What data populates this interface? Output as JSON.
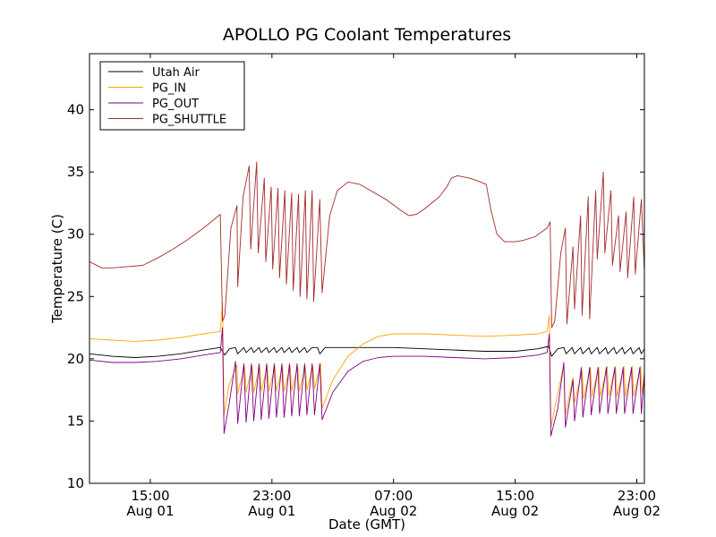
{
  "chart_data": {
    "type": "line",
    "title": "APOLLO PG Coolant Temperatures",
    "xlabel": "Date (GMT)",
    "ylabel": "Temperature (C)",
    "x_unit": "hours since Aug 01 00:00 GMT",
    "xlim": [
      11.0,
      47.5
    ],
    "ylim": [
      10,
      44.5
    ],
    "y_ticks": [
      10,
      15,
      20,
      25,
      30,
      35,
      40
    ],
    "x_ticks": [
      {
        "x": 15,
        "time": "15:00",
        "date": "Aug 01"
      },
      {
        "x": 23,
        "time": "23:00",
        "date": "Aug 01"
      },
      {
        "x": 31,
        "time": "07:00",
        "date": "Aug 02"
      },
      {
        "x": 39,
        "time": "15:00",
        "date": "Aug 02"
      },
      {
        "x": 47,
        "time": "23:00",
        "date": "Aug 02"
      }
    ],
    "legend_position": "top-left",
    "series": [
      {
        "name": "Utah Air",
        "color": "#000000",
        "points": [
          [
            11.0,
            20.4
          ],
          [
            12.5,
            20.2
          ],
          [
            14.0,
            20.1
          ],
          [
            15.5,
            20.2
          ],
          [
            17.0,
            20.4
          ],
          [
            18.5,
            20.7
          ],
          [
            19.6,
            20.9
          ],
          [
            19.9,
            20.3
          ],
          [
            20.2,
            20.8
          ],
          [
            20.6,
            20.9
          ],
          [
            20.75,
            20.4
          ],
          [
            21.15,
            20.9
          ],
          [
            21.3,
            20.5
          ],
          [
            21.65,
            20.9
          ],
          [
            21.8,
            20.5
          ],
          [
            22.15,
            20.9
          ],
          [
            22.3,
            20.5
          ],
          [
            22.65,
            20.9
          ],
          [
            22.8,
            20.5
          ],
          [
            23.15,
            20.9
          ],
          [
            23.3,
            20.5
          ],
          [
            23.65,
            20.9
          ],
          [
            23.8,
            20.5
          ],
          [
            24.15,
            20.9
          ],
          [
            24.3,
            20.5
          ],
          [
            24.65,
            20.9
          ],
          [
            24.8,
            20.5
          ],
          [
            25.15,
            20.9
          ],
          [
            25.3,
            20.5
          ],
          [
            25.65,
            20.9
          ],
          [
            26.0,
            20.9
          ],
          [
            26.15,
            20.4
          ],
          [
            26.5,
            20.9
          ],
          [
            29.0,
            20.9
          ],
          [
            31.0,
            20.9
          ],
          [
            33.0,
            20.8
          ],
          [
            35.0,
            20.7
          ],
          [
            37.0,
            20.6
          ],
          [
            39.0,
            20.6
          ],
          [
            40.5,
            20.8
          ],
          [
            41.2,
            21.0
          ],
          [
            41.4,
            20.2
          ],
          [
            41.8,
            20.8
          ],
          [
            42.2,
            20.9
          ],
          [
            42.35,
            20.4
          ],
          [
            42.75,
            20.9
          ],
          [
            42.9,
            20.4
          ],
          [
            43.3,
            20.9
          ],
          [
            43.45,
            20.4
          ],
          [
            43.85,
            20.9
          ],
          [
            44.0,
            20.4
          ],
          [
            44.4,
            20.9
          ],
          [
            44.55,
            20.4
          ],
          [
            44.95,
            20.9
          ],
          [
            45.1,
            20.4
          ],
          [
            45.5,
            20.9
          ],
          [
            45.65,
            20.4
          ],
          [
            46.05,
            20.9
          ],
          [
            46.2,
            20.4
          ],
          [
            46.6,
            20.9
          ],
          [
            46.75,
            20.4
          ],
          [
            47.15,
            20.9
          ],
          [
            47.3,
            20.4
          ],
          [
            47.5,
            20.8
          ]
        ]
      },
      {
        "name": "PG_IN",
        "color": "#ffa500",
        "points": [
          [
            11.0,
            21.6
          ],
          [
            12.5,
            21.5
          ],
          [
            14.0,
            21.4
          ],
          [
            15.5,
            21.5
          ],
          [
            17.0,
            21.7
          ],
          [
            18.5,
            22.0
          ],
          [
            19.6,
            22.2
          ],
          [
            19.75,
            24.5
          ],
          [
            19.85,
            15.5
          ],
          [
            20.2,
            18.0
          ],
          [
            20.7,
            19.5
          ],
          [
            20.75,
            17.2
          ],
          [
            21.2,
            19.4
          ],
          [
            21.3,
            17.3
          ],
          [
            21.7,
            19.4
          ],
          [
            21.8,
            17.3
          ],
          [
            22.2,
            19.4
          ],
          [
            22.3,
            17.4
          ],
          [
            22.7,
            19.4
          ],
          [
            22.8,
            17.4
          ],
          [
            23.2,
            19.4
          ],
          [
            23.3,
            17.4
          ],
          [
            23.7,
            19.4
          ],
          [
            23.8,
            17.4
          ],
          [
            24.2,
            19.4
          ],
          [
            24.3,
            17.4
          ],
          [
            24.7,
            19.4
          ],
          [
            24.8,
            17.4
          ],
          [
            25.2,
            19.4
          ],
          [
            25.3,
            17.5
          ],
          [
            25.7,
            19.4
          ],
          [
            25.8,
            17.6
          ],
          [
            26.2,
            19.6
          ],
          [
            26.3,
            16.0
          ],
          [
            27.0,
            18.3
          ],
          [
            28.0,
            20.2
          ],
          [
            29.0,
            21.2
          ],
          [
            30.0,
            21.8
          ],
          [
            31.0,
            22.0
          ],
          [
            33.0,
            22.0
          ],
          [
            35.0,
            21.9
          ],
          [
            37.0,
            21.8
          ],
          [
            39.0,
            21.9
          ],
          [
            40.5,
            22.0
          ],
          [
            41.1,
            22.2
          ],
          [
            41.25,
            23.5
          ],
          [
            41.35,
            14.5
          ],
          [
            41.8,
            17.2
          ],
          [
            42.2,
            19.5
          ],
          [
            42.3,
            15.5
          ],
          [
            42.8,
            18.5
          ],
          [
            42.9,
            16.5
          ],
          [
            43.4,
            19.0
          ],
          [
            43.5,
            16.8
          ],
          [
            43.95,
            19.3
          ],
          [
            44.05,
            17.0
          ],
          [
            44.5,
            19.3
          ],
          [
            44.6,
            17.0
          ],
          [
            45.05,
            19.4
          ],
          [
            45.15,
            17.0
          ],
          [
            45.6,
            19.4
          ],
          [
            45.7,
            17.0
          ],
          [
            46.15,
            19.4
          ],
          [
            46.25,
            17.0
          ],
          [
            46.7,
            19.4
          ],
          [
            46.8,
            17.0
          ],
          [
            47.25,
            19.4
          ],
          [
            47.35,
            17.2
          ],
          [
            47.5,
            19.0
          ]
        ]
      },
      {
        "name": "PG_OUT",
        "color": "#800080",
        "points": [
          [
            11.0,
            19.9
          ],
          [
            12.5,
            19.7
          ],
          [
            14.0,
            19.7
          ],
          [
            15.5,
            19.8
          ],
          [
            17.0,
            20.0
          ],
          [
            18.5,
            20.3
          ],
          [
            19.6,
            20.5
          ],
          [
            19.75,
            22.5
          ],
          [
            19.85,
            14.0
          ],
          [
            20.2,
            16.5
          ],
          [
            20.6,
            19.8
          ],
          [
            20.75,
            14.8
          ],
          [
            21.15,
            19.6
          ],
          [
            21.3,
            14.9
          ],
          [
            21.65,
            19.6
          ],
          [
            21.8,
            15.0
          ],
          [
            22.15,
            19.6
          ],
          [
            22.3,
            15.1
          ],
          [
            22.65,
            19.6
          ],
          [
            22.8,
            15.2
          ],
          [
            23.15,
            19.6
          ],
          [
            23.3,
            15.3
          ],
          [
            23.65,
            19.6
          ],
          [
            23.8,
            15.3
          ],
          [
            24.15,
            19.6
          ],
          [
            24.3,
            15.4
          ],
          [
            24.65,
            19.6
          ],
          [
            24.8,
            15.4
          ],
          [
            25.15,
            19.6
          ],
          [
            25.3,
            15.5
          ],
          [
            25.65,
            19.6
          ],
          [
            25.8,
            15.5
          ],
          [
            26.15,
            19.6
          ],
          [
            26.3,
            15.1
          ],
          [
            27.0,
            17.3
          ],
          [
            28.0,
            19.0
          ],
          [
            29.0,
            19.8
          ],
          [
            30.0,
            20.1
          ],
          [
            31.0,
            20.2
          ],
          [
            33.0,
            20.2
          ],
          [
            35.0,
            20.1
          ],
          [
            37.0,
            20.0
          ],
          [
            39.0,
            20.1
          ],
          [
            40.5,
            20.3
          ],
          [
            41.1,
            20.5
          ],
          [
            41.25,
            22.0
          ],
          [
            41.35,
            13.8
          ],
          [
            41.8,
            16.0
          ],
          [
            42.2,
            19.7
          ],
          [
            42.3,
            14.5
          ],
          [
            42.8,
            18.3
          ],
          [
            42.9,
            15.0
          ],
          [
            43.35,
            19.3
          ],
          [
            43.45,
            15.3
          ],
          [
            43.9,
            19.3
          ],
          [
            44.0,
            15.5
          ],
          [
            44.45,
            19.3
          ],
          [
            44.55,
            15.6
          ],
          [
            45.0,
            19.3
          ],
          [
            45.1,
            15.6
          ],
          [
            45.55,
            19.3
          ],
          [
            45.65,
            15.6
          ],
          [
            46.1,
            19.3
          ],
          [
            46.2,
            15.6
          ],
          [
            46.65,
            19.3
          ],
          [
            46.75,
            15.6
          ],
          [
            47.2,
            19.3
          ],
          [
            47.3,
            15.6
          ],
          [
            47.5,
            18.8
          ]
        ]
      },
      {
        "name": "PG_SHUTTLE",
        "color": "#a52a2a",
        "points": [
          [
            11.0,
            27.8
          ],
          [
            11.8,
            27.3
          ],
          [
            12.5,
            27.3
          ],
          [
            13.5,
            27.4
          ],
          [
            14.5,
            27.5
          ],
          [
            15.5,
            28.1
          ],
          [
            16.5,
            28.8
          ],
          [
            17.5,
            29.6
          ],
          [
            18.5,
            30.5
          ],
          [
            19.6,
            31.6
          ],
          [
            19.75,
            23.0
          ],
          [
            19.9,
            23.5
          ],
          [
            20.3,
            30.5
          ],
          [
            20.7,
            32.3
          ],
          [
            20.75,
            25.8
          ],
          [
            21.1,
            33.0
          ],
          [
            21.5,
            35.5
          ],
          [
            21.6,
            28.8
          ],
          [
            22.0,
            35.8
          ],
          [
            22.1,
            28.5
          ],
          [
            22.5,
            34.5
          ],
          [
            22.6,
            27.8
          ],
          [
            22.95,
            33.8
          ],
          [
            23.05,
            27.2
          ],
          [
            23.4,
            33.7
          ],
          [
            23.5,
            26.5
          ],
          [
            23.85,
            33.5
          ],
          [
            23.95,
            26.0
          ],
          [
            24.3,
            33.3
          ],
          [
            24.4,
            25.5
          ],
          [
            24.75,
            33.2
          ],
          [
            24.85,
            25.0
          ],
          [
            25.2,
            33.5
          ],
          [
            25.3,
            24.8
          ],
          [
            25.65,
            33.5
          ],
          [
            25.75,
            24.6
          ],
          [
            26.15,
            32.8
          ],
          [
            26.3,
            25.3
          ],
          [
            26.8,
            31.5
          ],
          [
            27.3,
            33.5
          ],
          [
            28.0,
            34.2
          ],
          [
            28.8,
            34.0
          ],
          [
            29.5,
            33.5
          ],
          [
            30.5,
            32.8
          ],
          [
            31.5,
            31.9
          ],
          [
            32.0,
            31.5
          ],
          [
            32.5,
            31.6
          ],
          [
            33.0,
            32.0
          ],
          [
            33.5,
            32.5
          ],
          [
            34.0,
            33.0
          ],
          [
            34.5,
            33.8
          ],
          [
            34.8,
            34.5
          ],
          [
            35.2,
            34.7
          ],
          [
            36.0,
            34.5
          ],
          [
            36.5,
            34.3
          ],
          [
            37.1,
            34.0
          ],
          [
            37.4,
            32.0
          ],
          [
            37.8,
            30.0
          ],
          [
            38.3,
            29.4
          ],
          [
            39.0,
            29.4
          ],
          [
            39.5,
            29.5
          ],
          [
            40.3,
            29.8
          ],
          [
            41.1,
            30.5
          ],
          [
            41.3,
            31.0
          ],
          [
            41.4,
            22.5
          ],
          [
            41.6,
            23.0
          ],
          [
            42.0,
            28.5
          ],
          [
            42.3,
            30.5
          ],
          [
            42.4,
            22.8
          ],
          [
            42.8,
            29.0
          ],
          [
            42.9,
            24.0
          ],
          [
            43.3,
            31.5
          ],
          [
            43.4,
            23.5
          ],
          [
            43.8,
            33.0
          ],
          [
            43.9,
            23.2
          ],
          [
            44.3,
            33.5
          ],
          [
            44.4,
            28.0
          ],
          [
            44.8,
            35.0
          ],
          [
            44.9,
            28.5
          ],
          [
            45.3,
            33.5
          ],
          [
            45.4,
            27.5
          ],
          [
            45.8,
            31.5
          ],
          [
            45.9,
            27.0
          ],
          [
            46.3,
            31.8
          ],
          [
            46.4,
            26.5
          ],
          [
            46.8,
            33.0
          ],
          [
            46.9,
            26.8
          ],
          [
            47.3,
            32.8
          ],
          [
            47.5,
            27.0
          ]
        ]
      }
    ]
  }
}
